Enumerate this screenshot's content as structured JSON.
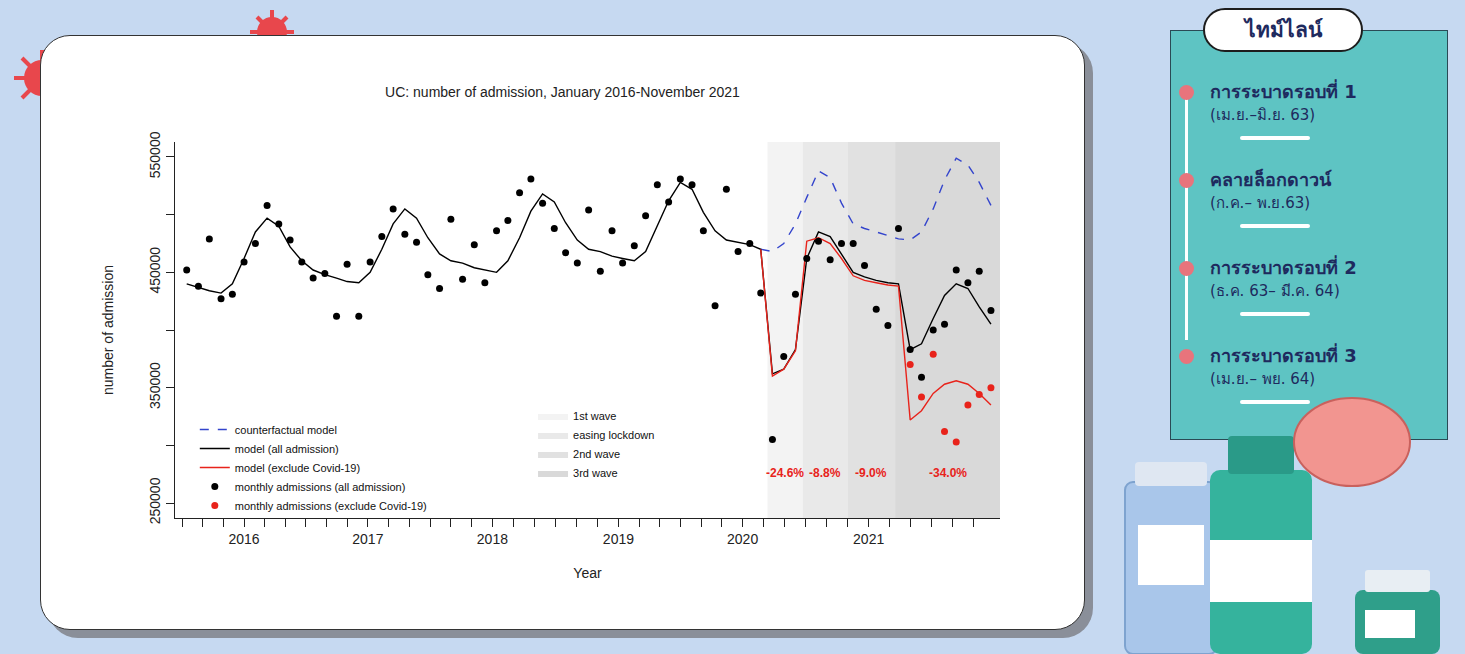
{
  "chart_data": {
    "type": "line",
    "title": "UC: number of admission, January 2016-November 2021",
    "x_label": "Year",
    "y_label": "number of admission",
    "x": [
      "2016-01",
      "2016-02",
      "2016-03",
      "2016-04",
      "2016-05",
      "2016-06",
      "2016-07",
      "2016-08",
      "2016-09",
      "2016-10",
      "2016-11",
      "2016-12",
      "2017-01",
      "2017-02",
      "2017-03",
      "2017-04",
      "2017-05",
      "2017-06",
      "2017-07",
      "2017-08",
      "2017-09",
      "2017-10",
      "2017-11",
      "2017-12",
      "2018-01",
      "2018-02",
      "2018-03",
      "2018-04",
      "2018-05",
      "2018-06",
      "2018-07",
      "2018-08",
      "2018-09",
      "2018-10",
      "2018-11",
      "2018-12",
      "2019-01",
      "2019-02",
      "2019-03",
      "2019-04",
      "2019-05",
      "2019-06",
      "2019-07",
      "2019-08",
      "2019-09",
      "2019-10",
      "2019-11",
      "2019-12",
      "2020-01",
      "2020-02",
      "2020-03",
      "2020-04",
      "2020-05",
      "2020-06",
      "2020-07",
      "2020-08",
      "2020-09",
      "2020-10",
      "2020-11",
      "2020-12",
      "2021-01",
      "2021-02",
      "2021-03",
      "2021-04",
      "2021-05",
      "2021-06",
      "2021-07",
      "2021-08",
      "2021-09",
      "2021-10",
      "2021-11"
    ],
    "xlim": [
      "2015-12-01",
      "2021-11-25"
    ],
    "xticks": [
      {
        "value": "2016-06-01",
        "label": "2016"
      },
      {
        "value": "2017-04-25",
        "label": "2017"
      },
      {
        "value": "2018-03-21",
        "label": "2018"
      },
      {
        "value": "2019-02-18",
        "label": "2019"
      },
      {
        "value": "2020-01-13",
        "label": "2020"
      },
      {
        "value": "2020-12-12",
        "label": "2021"
      }
    ],
    "ylim": [
      237000,
      563000
    ],
    "yticks": [
      250000,
      350000,
      450000,
      550000
    ],
    "grid": false,
    "legend": "bottom-left",
    "series": [
      {
        "name": "counterfactual model",
        "type": "line",
        "line_style": "dashed",
        "color": "#3344cc",
        "values": [
          null,
          null,
          null,
          null,
          null,
          null,
          null,
          null,
          null,
          null,
          null,
          null,
          null,
          null,
          null,
          null,
          null,
          null,
          null,
          null,
          null,
          null,
          null,
          null,
          null,
          null,
          null,
          null,
          null,
          null,
          null,
          null,
          null,
          null,
          null,
          null,
          null,
          null,
          null,
          null,
          null,
          null,
          null,
          null,
          null,
          null,
          null,
          null,
          null,
          null,
          470000,
          468000,
          475000,
          492000,
          515000,
          538000,
          532000,
          510000,
          492000,
          488000,
          485000,
          482000,
          479000,
          478000,
          485000,
          505000,
          530000,
          549000,
          543000,
          528000,
          508000
        ]
      },
      {
        "name": "model (all admission)",
        "type": "line",
        "line_style": "solid",
        "color": "#000000",
        "values": [
          440000,
          437000,
          434000,
          432000,
          440000,
          462000,
          485000,
          497000,
          490000,
          472000,
          460000,
          452000,
          448000,
          445000,
          442000,
          441000,
          450000,
          470000,
          492000,
          505000,
          497000,
          480000,
          466000,
          460000,
          458000,
          454000,
          452000,
          450000,
          460000,
          480000,
          503000,
          518000,
          511000,
          493000,
          478000,
          470000,
          468000,
          464000,
          462000,
          460000,
          468000,
          490000,
          512000,
          528000,
          522000,
          502000,
          486000,
          478000,
          476000,
          474000,
          470000,
          362000,
          366000,
          383000,
          462000,
          485000,
          481000,
          466000,
          450000,
          446000,
          443000,
          441000,
          440000,
          383000,
          388000,
          410000,
          430000,
          440000,
          436000,
          420000,
          405000
        ]
      },
      {
        "name": "model (exclude Covid-19)",
        "type": "line",
        "line_style": "solid",
        "color": "#e8231b",
        "values": [
          null,
          null,
          null,
          null,
          null,
          null,
          null,
          null,
          null,
          null,
          null,
          null,
          null,
          null,
          null,
          null,
          null,
          null,
          null,
          null,
          null,
          null,
          null,
          null,
          null,
          null,
          null,
          null,
          null,
          null,
          null,
          null,
          null,
          null,
          null,
          null,
          null,
          null,
          null,
          null,
          null,
          null,
          null,
          null,
          null,
          null,
          null,
          null,
          null,
          null,
          470000,
          360000,
          366000,
          382000,
          477000,
          480000,
          475000,
          462000,
          447000,
          443000,
          441000,
          439000,
          438000,
          322000,
          330000,
          345000,
          353000,
          356000,
          353000,
          345000,
          335000
        ]
      },
      {
        "name": "monthly admissions (all admission)",
        "type": "scatter",
        "marker": "circle",
        "color": "#000000",
        "values": [
          452000,
          438000,
          479000,
          427000,
          431000,
          459000,
          475000,
          508000,
          492000,
          478000,
          459000,
          445000,
          449000,
          412000,
          457000,
          412000,
          459000,
          481000,
          505000,
          483000,
          476000,
          448000,
          436000,
          496000,
          444000,
          474000,
          441000,
          486000,
          495000,
          519000,
          531000,
          510000,
          488000,
          467000,
          458000,
          504000,
          451000,
          486000,
          458000,
          473000,
          499000,
          526000,
          511000,
          531000,
          526000,
          486000,
          421000,
          522000,
          468000,
          475000,
          432000,
          305000,
          377000,
          431000,
          462000,
          477000,
          461000,
          475000,
          475000,
          456000,
          418000,
          404000,
          488000,
          383000,
          359000,
          400000,
          405000,
          452000,
          441000,
          451000,
          417000
        ]
      },
      {
        "name": "monthly admissions (exclude Covid-19)",
        "type": "scatter",
        "marker": "circle",
        "color": "#e8231b",
        "values": [
          null,
          null,
          null,
          null,
          null,
          null,
          null,
          null,
          null,
          null,
          null,
          null,
          null,
          null,
          null,
          null,
          null,
          null,
          null,
          null,
          null,
          null,
          null,
          null,
          null,
          null,
          null,
          null,
          null,
          null,
          null,
          null,
          null,
          null,
          null,
          null,
          null,
          null,
          null,
          null,
          null,
          null,
          null,
          null,
          null,
          null,
          null,
          null,
          null,
          null,
          null,
          null,
          null,
          null,
          null,
          null,
          null,
          null,
          null,
          null,
          null,
          null,
          null,
          370000,
          342000,
          379000,
          312000,
          303000,
          335000,
          344000,
          350000
        ]
      }
    ],
    "periods": [
      {
        "name": "1st wave",
        "start": "2020-03-19",
        "end": "2020-06-20",
        "color": "#f3f3f3",
        "label": "-24.6%"
      },
      {
        "name": "easing lockdown",
        "start": "2020-06-20",
        "end": "2020-10-18",
        "color": "#e9e9e9",
        "label": "-8.8%"
      },
      {
        "name": "2nd wave",
        "start": "2020-10-18",
        "end": "2021-02-20",
        "color": "#e1e1e1",
        "label": "-9.0%"
      },
      {
        "name": "3rd wave",
        "start": "2021-02-20",
        "end": "2021-11-25",
        "color": "#d9d9d9",
        "label": "-34.0%"
      }
    ],
    "period_label_color": "#e8231b"
  },
  "timeline": {
    "title": "ไทม์ไลน์",
    "items": [
      {
        "label": "การระบาดรอบที่ 1",
        "period": "(เม.ย.–มิ.ย. 63)"
      },
      {
        "label": "คลายล็อกดาวน์",
        "period": "(ก.ค.– พ.ย.63)"
      },
      {
        "label": "การระบาดรอบที่ 2",
        "period": "(ธ.ค. 63– มี.ค. 64)"
      },
      {
        "label": "การระบาดรอบที่ 3",
        "period": "(เม.ย.– พย. 64)"
      }
    ]
  }
}
